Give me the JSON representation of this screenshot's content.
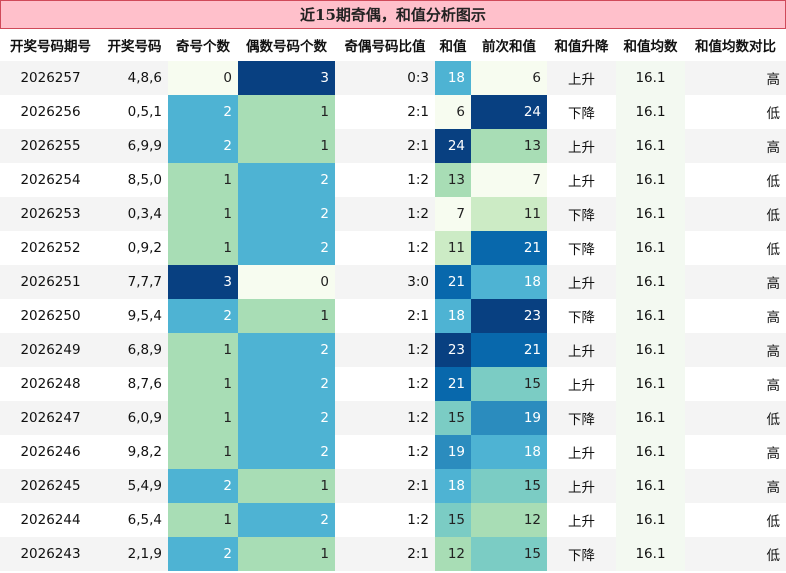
{
  "title": "近15期奇偶，和值分析图示",
  "colors": {
    "title_bg": "#ffc0cb",
    "title_border": "#d04a5a",
    "avg_bg": "#f3f9f1",
    "heat_scale": [
      "#f7fcf0",
      "#e0f3db",
      "#ccebc5",
      "#a8ddb5",
      "#7bccc4",
      "#4eb3d3",
      "#2b8cbe",
      "#0868ac",
      "#084081"
    ]
  },
  "chart_data": {
    "type": "table",
    "columns": [
      "开奖号码期号",
      "开奖号码",
      "奇号个数",
      "偶数号码个数",
      "奇偶号码比值",
      "和值",
      "前次和值",
      "和值升降",
      "和值均数",
      "和值均数对比"
    ],
    "heat_ranges": {
      "odd_even_count": [
        0,
        3
      ],
      "sum": [
        6,
        24
      ]
    },
    "rows": [
      {
        "period": "2026257",
        "numbers": "4,8,6",
        "odd": 0,
        "even": 3,
        "ratio": "0:3",
        "sum": 18,
        "prev_sum": 6,
        "trend": "上升",
        "avg": "16.1",
        "compare": "高"
      },
      {
        "period": "2026256",
        "numbers": "0,5,1",
        "odd": 2,
        "even": 1,
        "ratio": "2:1",
        "sum": 6,
        "prev_sum": 24,
        "trend": "下降",
        "avg": "16.1",
        "compare": "低"
      },
      {
        "period": "2026255",
        "numbers": "6,9,9",
        "odd": 2,
        "even": 1,
        "ratio": "2:1",
        "sum": 24,
        "prev_sum": 13,
        "trend": "上升",
        "avg": "16.1",
        "compare": "高"
      },
      {
        "period": "2026254",
        "numbers": "8,5,0",
        "odd": 1,
        "even": 2,
        "ratio": "1:2",
        "sum": 13,
        "prev_sum": 7,
        "trend": "上升",
        "avg": "16.1",
        "compare": "低"
      },
      {
        "period": "2026253",
        "numbers": "0,3,4",
        "odd": 1,
        "even": 2,
        "ratio": "1:2",
        "sum": 7,
        "prev_sum": 11,
        "trend": "下降",
        "avg": "16.1",
        "compare": "低"
      },
      {
        "period": "2026252",
        "numbers": "0,9,2",
        "odd": 1,
        "even": 2,
        "ratio": "1:2",
        "sum": 11,
        "prev_sum": 21,
        "trend": "下降",
        "avg": "16.1",
        "compare": "低"
      },
      {
        "period": "2026251",
        "numbers": "7,7,7",
        "odd": 3,
        "even": 0,
        "ratio": "3:0",
        "sum": 21,
        "prev_sum": 18,
        "trend": "上升",
        "avg": "16.1",
        "compare": "高"
      },
      {
        "period": "2026250",
        "numbers": "9,5,4",
        "odd": 2,
        "even": 1,
        "ratio": "2:1",
        "sum": 18,
        "prev_sum": 23,
        "trend": "下降",
        "avg": "16.1",
        "compare": "高"
      },
      {
        "period": "2026249",
        "numbers": "6,8,9",
        "odd": 1,
        "even": 2,
        "ratio": "1:2",
        "sum": 23,
        "prev_sum": 21,
        "trend": "上升",
        "avg": "16.1",
        "compare": "高"
      },
      {
        "period": "2026248",
        "numbers": "8,7,6",
        "odd": 1,
        "even": 2,
        "ratio": "1:2",
        "sum": 21,
        "prev_sum": 15,
        "trend": "上升",
        "avg": "16.1",
        "compare": "高"
      },
      {
        "period": "2026247",
        "numbers": "6,0,9",
        "odd": 1,
        "even": 2,
        "ratio": "1:2",
        "sum": 15,
        "prev_sum": 19,
        "trend": "下降",
        "avg": "16.1",
        "compare": "低"
      },
      {
        "period": "2026246",
        "numbers": "9,8,2",
        "odd": 1,
        "even": 2,
        "ratio": "1:2",
        "sum": 19,
        "prev_sum": 18,
        "trend": "上升",
        "avg": "16.1",
        "compare": "高"
      },
      {
        "period": "2026245",
        "numbers": "5,4,9",
        "odd": 2,
        "even": 1,
        "ratio": "2:1",
        "sum": 18,
        "prev_sum": 15,
        "trend": "上升",
        "avg": "16.1",
        "compare": "高"
      },
      {
        "period": "2026244",
        "numbers": "6,5,4",
        "odd": 1,
        "even": 2,
        "ratio": "1:2",
        "sum": 15,
        "prev_sum": 12,
        "trend": "上升",
        "avg": "16.1",
        "compare": "低"
      },
      {
        "period": "2026243",
        "numbers": "2,1,9",
        "odd": 2,
        "even": 1,
        "ratio": "2:1",
        "sum": 12,
        "prev_sum": 15,
        "trend": "下降",
        "avg": "16.1",
        "compare": "低"
      }
    ]
  }
}
